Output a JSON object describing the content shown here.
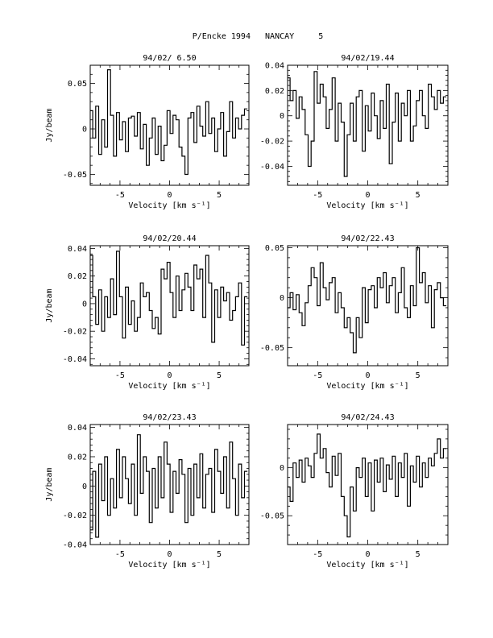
{
  "title": "P/Encke 1994   NANCAY     5",
  "colors": {
    "foreground": "#000000",
    "background": "#ffffff"
  },
  "chart_data": [
    {
      "type": "line",
      "title": "94/02/ 6.50",
      "xlabel": "Velocity [km s⁻¹]",
      "ylabel": "Jy/beam",
      "xlim": [
        -8,
        8
      ],
      "ylim": [
        -0.062,
        0.07
      ],
      "xticks": [
        -5,
        0,
        5
      ],
      "xtick_labels": [
        "-5",
        "0",
        "5"
      ],
      "yticks": [
        -0.05,
        0,
        0.05
      ],
      "ytick_labels": [
        "-0.05",
        "0",
        "0.05"
      ],
      "series": [
        {
          "x": [
            -7.9,
            -7.6,
            -7.3,
            -7.0,
            -6.7,
            -6.4,
            -6.1,
            -5.8,
            -5.5,
            -5.2,
            -4.9,
            -4.6,
            -4.3,
            -4.0,
            -3.7,
            -3.4,
            -3.1,
            -2.8,
            -2.5,
            -2.2,
            -1.9,
            -1.6,
            -1.3,
            -1.0,
            -0.7,
            -0.4,
            -0.1,
            0.2,
            0.5,
            0.8,
            1.1,
            1.4,
            1.7,
            2.0,
            2.3,
            2.6,
            2.9,
            3.2,
            3.5,
            3.8,
            4.1,
            4.4,
            4.7,
            5.0,
            5.3,
            5.6,
            5.9,
            6.2,
            6.5,
            6.8,
            7.1,
            7.4,
            7.7
          ],
          "y": [
            0.02,
            -0.01,
            0.025,
            -0.028,
            0.01,
            -0.02,
            0.065,
            0.015,
            -0.03,
            0.018,
            -0.012,
            0.008,
            -0.025,
            0.012,
            0.014,
            -0.008,
            0.018,
            -0.022,
            0.005,
            -0.04,
            -0.01,
            0.012,
            -0.028,
            0.003,
            -0.035,
            -0.018,
            0.02,
            -0.005,
            0.015,
            0.01,
            -0.02,
            -0.03,
            -0.05,
            0.012,
            0.018,
            -0.015,
            0.025,
            0.003,
            -0.008,
            0.03,
            -0.005,
            0.012,
            -0.025,
            0.0,
            0.018,
            -0.03,
            -0.003,
            0.03,
            -0.01,
            0.012,
            0.0,
            0.015,
            0.022
          ]
        }
      ]
    },
    {
      "type": "line",
      "title": "94/02/19.44",
      "xlabel": "Velocity [km s⁻¹]",
      "ylabel": "",
      "xlim": [
        -8,
        8
      ],
      "ylim": [
        -0.055,
        0.04
      ],
      "xticks": [
        -5,
        0,
        5
      ],
      "xtick_labels": [
        "-5",
        "0",
        "5"
      ],
      "yticks": [
        -0.04,
        -0.02,
        0,
        0.02,
        0.04
      ],
      "ytick_labels": [
        "-0.04",
        "-0.02",
        "0",
        "0.02",
        "0.04"
      ],
      "series": [
        {
          "x": [
            -7.9,
            -7.6,
            -7.3,
            -7.0,
            -6.7,
            -6.4,
            -6.1,
            -5.8,
            -5.5,
            -5.2,
            -4.9,
            -4.6,
            -4.3,
            -4.0,
            -3.7,
            -3.4,
            -3.1,
            -2.8,
            -2.5,
            -2.2,
            -1.9,
            -1.6,
            -1.3,
            -1.0,
            -0.7,
            -0.4,
            -0.1,
            0.2,
            0.5,
            0.8,
            1.1,
            1.4,
            1.7,
            2.0,
            2.3,
            2.6,
            2.9,
            3.2,
            3.5,
            3.8,
            4.1,
            4.4,
            4.7,
            5.0,
            5.3,
            5.6,
            5.9,
            6.2,
            6.5,
            6.8,
            7.1,
            7.4,
            7.7
          ],
          "y": [
            0.03,
            0.012,
            0.02,
            -0.002,
            0.015,
            0.005,
            -0.015,
            -0.04,
            -0.02,
            0.035,
            0.01,
            0.025,
            0.015,
            -0.01,
            0.005,
            0.03,
            -0.02,
            0.01,
            -0.005,
            -0.048,
            -0.015,
            0.01,
            -0.02,
            0.015,
            0.02,
            -0.028,
            0.008,
            -0.012,
            0.018,
            0.0,
            -0.018,
            0.012,
            -0.01,
            0.025,
            -0.038,
            -0.005,
            0.018,
            -0.02,
            0.01,
            0.0,
            0.02,
            -0.02,
            -0.008,
            0.012,
            0.02,
            0.0,
            -0.01,
            0.025,
            0.015,
            0.005,
            0.02,
            0.01,
            0.015
          ]
        }
      ]
    },
    {
      "type": "line",
      "title": "94/02/20.44",
      "xlabel": "Velocity [km s⁻¹]",
      "ylabel": "Jy/beam",
      "xlim": [
        -8,
        8
      ],
      "ylim": [
        -0.045,
        0.042
      ],
      "xticks": [
        -5,
        0,
        5
      ],
      "xtick_labels": [
        "-5",
        "0",
        "5"
      ],
      "yticks": [
        -0.04,
        -0.02,
        0,
        0.02,
        0.04
      ],
      "ytick_labels": [
        "-0.04",
        "-0.02",
        "0",
        "0.02",
        "0.04"
      ],
      "series": [
        {
          "x": [
            -7.9,
            -7.6,
            -7.3,
            -7.0,
            -6.7,
            -6.4,
            -6.1,
            -5.8,
            -5.5,
            -5.2,
            -4.9,
            -4.6,
            -4.3,
            -4.0,
            -3.7,
            -3.4,
            -3.1,
            -2.8,
            -2.5,
            -2.2,
            -1.9,
            -1.6,
            -1.3,
            -1.0,
            -0.7,
            -0.4,
            -0.1,
            0.2,
            0.5,
            0.8,
            1.1,
            1.4,
            1.7,
            2.0,
            2.3,
            2.6,
            2.9,
            3.2,
            3.5,
            3.8,
            4.1,
            4.4,
            4.7,
            5.0,
            5.3,
            5.6,
            5.9,
            6.2,
            6.5,
            6.8,
            7.1,
            7.4,
            7.7
          ],
          "y": [
            0.035,
            0.005,
            -0.015,
            0.01,
            -0.02,
            0.005,
            -0.01,
            0.018,
            -0.008,
            0.038,
            0.005,
            -0.025,
            0.012,
            -0.015,
            0.002,
            -0.02,
            -0.01,
            0.015,
            0.005,
            0.008,
            -0.005,
            -0.018,
            -0.01,
            -0.022,
            0.025,
            0.018,
            0.03,
            0.008,
            -0.01,
            0.02,
            -0.005,
            0.01,
            0.022,
            0.012,
            -0.005,
            0.028,
            0.018,
            0.025,
            -0.01,
            0.035,
            0.015,
            -0.028,
            0.01,
            -0.01,
            0.012,
            0.002,
            0.008,
            -0.012,
            -0.005,
            0.005,
            0.015,
            -0.03,
            0.005
          ]
        }
      ]
    },
    {
      "type": "line",
      "title": "94/02/22.43",
      "xlabel": "Velocity [km s⁻¹]",
      "ylabel": "",
      "xlim": [
        -8,
        8
      ],
      "ylim": [
        -0.068,
        0.052
      ],
      "xticks": [
        -5,
        0,
        5
      ],
      "xtick_labels": [
        "-5",
        "0",
        "5"
      ],
      "yticks": [
        -0.05,
        0,
        0.05
      ],
      "ytick_labels": [
        "-0.05",
        "0",
        "0.05"
      ],
      "series": [
        {
          "x": [
            -7.9,
            -7.6,
            -7.3,
            -7.0,
            -6.7,
            -6.4,
            -6.1,
            -5.8,
            -5.5,
            -5.2,
            -4.9,
            -4.6,
            -4.3,
            -4.0,
            -3.7,
            -3.4,
            -3.1,
            -2.8,
            -2.5,
            -2.2,
            -1.9,
            -1.6,
            -1.3,
            -1.0,
            -0.7,
            -0.4,
            -0.1,
            0.2,
            0.5,
            0.8,
            1.1,
            1.4,
            1.7,
            2.0,
            2.3,
            2.6,
            2.9,
            3.2,
            3.5,
            3.8,
            4.1,
            4.4,
            4.7,
            5.0,
            5.3,
            5.6,
            5.9,
            6.2,
            6.5,
            6.8,
            7.1,
            7.4,
            7.7
          ],
          "y": [
            -0.01,
            0.005,
            -0.012,
            0.003,
            -0.015,
            -0.028,
            -0.005,
            0.012,
            0.03,
            0.02,
            -0.008,
            0.035,
            0.01,
            -0.002,
            0.015,
            0.02,
            -0.015,
            0.005,
            -0.01,
            -0.03,
            -0.02,
            -0.035,
            -0.055,
            -0.02,
            -0.04,
            0.01,
            -0.025,
            0.008,
            0.012,
            -0.01,
            0.02,
            0.01,
            0.025,
            -0.005,
            0.012,
            0.02,
            -0.015,
            0.005,
            0.03,
            -0.01,
            -0.02,
            0.012,
            -0.008,
            0.05,
            0.015,
            0.025,
            -0.005,
            0.012,
            -0.03,
            0.008,
            0.015,
            0.0,
            -0.008
          ]
        }
      ]
    },
    {
      "type": "line",
      "title": "94/02/23.43",
      "xlabel": "Velocity [km s⁻¹]",
      "ylabel": "Jy/beam",
      "xlim": [
        -8,
        8
      ],
      "ylim": [
        -0.04,
        0.042
      ],
      "xticks": [
        -5,
        0,
        5
      ],
      "xtick_labels": [
        "-5",
        "0",
        "5"
      ],
      "yticks": [
        -0.04,
        -0.02,
        0,
        0.02,
        0.04
      ],
      "ytick_labels": [
        "-0.04",
        "-0.02",
        "0",
        "0.02",
        "0.04"
      ],
      "series": [
        {
          "x": [
            -7.9,
            -7.6,
            -7.3,
            -7.0,
            -6.7,
            -6.4,
            -6.1,
            -5.8,
            -5.5,
            -5.2,
            -4.9,
            -4.6,
            -4.3,
            -4.0,
            -3.7,
            -3.4,
            -3.1,
            -2.8,
            -2.5,
            -2.2,
            -1.9,
            -1.6,
            -1.3,
            -1.0,
            -0.7,
            -0.4,
            -0.1,
            0.2,
            0.5,
            0.8,
            1.1,
            1.4,
            1.7,
            2.0,
            2.3,
            2.6,
            2.9,
            3.2,
            3.5,
            3.8,
            4.1,
            4.4,
            4.7,
            5.0,
            5.3,
            5.6,
            5.9,
            6.2,
            6.5,
            6.8,
            7.1,
            7.4,
            7.7
          ],
          "y": [
            -0.03,
            0.01,
            -0.035,
            0.015,
            -0.01,
            0.02,
            -0.02,
            0.005,
            -0.015,
            0.025,
            -0.008,
            0.02,
            0.005,
            -0.012,
            0.015,
            -0.02,
            0.035,
            -0.005,
            0.02,
            0.01,
            -0.025,
            0.012,
            -0.015,
            0.02,
            -0.008,
            0.03,
            0.015,
            -0.018,
            0.01,
            -0.005,
            0.018,
            0.008,
            -0.025,
            0.012,
            -0.02,
            0.015,
            -0.008,
            0.022,
            -0.015,
            0.008,
            0.012,
            -0.018,
            0.025,
            0.01,
            -0.005,
            0.02,
            -0.015,
            0.03,
            0.005,
            -0.02,
            0.015,
            -0.008,
            0.01
          ]
        }
      ]
    },
    {
      "type": "line",
      "title": "94/02/24.43",
      "xlabel": "Velocity [km s⁻¹]",
      "ylabel": "",
      "xlim": [
        -8,
        8
      ],
      "ylim": [
        -0.08,
        0.045
      ],
      "xticks": [
        -5,
        0,
        5
      ],
      "xtick_labels": [
        "-5",
        "0",
        "5"
      ],
      "yticks": [
        -0.05,
        0
      ],
      "ytick_labels": [
        "-0.05",
        "0"
      ],
      "series": [
        {
          "x": [
            -7.9,
            -7.6,
            -7.3,
            -7.0,
            -6.7,
            -6.4,
            -6.1,
            -5.8,
            -5.5,
            -5.2,
            -4.9,
            -4.6,
            -4.3,
            -4.0,
            -3.7,
            -3.4,
            -3.1,
            -2.8,
            -2.5,
            -2.2,
            -1.9,
            -1.6,
            -1.3,
            -1.0,
            -0.7,
            -0.4,
            -0.1,
            0.2,
            0.5,
            0.8,
            1.1,
            1.4,
            1.7,
            2.0,
            2.3,
            2.6,
            2.9,
            3.2,
            3.5,
            3.8,
            4.1,
            4.4,
            4.7,
            5.0,
            5.3,
            5.6,
            5.9,
            6.2,
            6.5,
            6.8,
            7.1,
            7.4,
            7.7
          ],
          "y": [
            -0.02,
            -0.035,
            0.005,
            -0.01,
            0.008,
            -0.015,
            0.01,
            0.002,
            -0.01,
            0.015,
            0.035,
            0.01,
            0.02,
            -0.005,
            -0.02,
            0.012,
            -0.008,
            0.015,
            -0.03,
            -0.05,
            -0.072,
            -0.02,
            -0.045,
            0.0,
            -0.01,
            0.01,
            -0.03,
            0.005,
            -0.045,
            0.008,
            -0.015,
            0.01,
            -0.025,
            0.003,
            -0.012,
            0.012,
            -0.03,
            0.005,
            -0.01,
            0.015,
            -0.04,
            0.002,
            -0.015,
            0.012,
            -0.02,
            0.005,
            -0.01,
            0.01,
            0.002,
            0.015,
            0.03,
            0.01,
            0.02
          ]
        }
      ]
    }
  ]
}
